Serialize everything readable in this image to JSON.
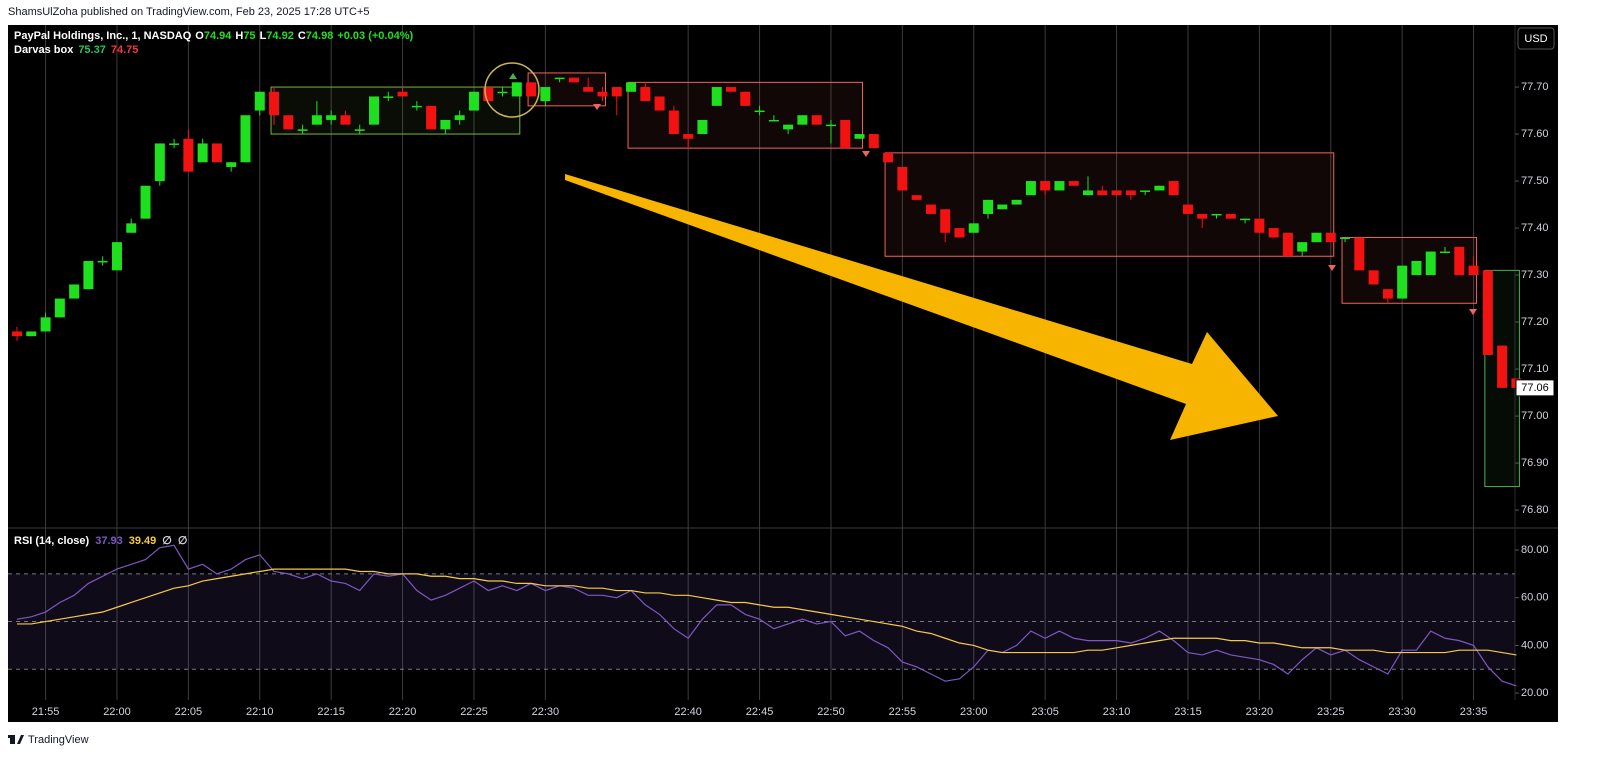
{
  "page": {
    "header": "ShamsUlZoha published on TradingView.com, Feb 23, 2025 17:28 UTC+5",
    "footer": "TradingView"
  },
  "chart_data": [
    {
      "type": "candlestick",
      "title": "PayPal Holdings, Inc., 1, NASDAQ",
      "ohlc": [
        {
          "label": "O",
          "value": 74.94
        },
        {
          "label": "H",
          "value": 75.0
        },
        {
          "label": "L",
          "value": 74.92
        },
        {
          "label": "C",
          "value": 74.98
        }
      ],
      "change": "+0.03 (+0.04%)",
      "indicator": {
        "name": "Darvas box",
        "values": [
          75.37,
          74.75
        ],
        "colors": [
          "#22c55e",
          "#f23645"
        ]
      },
      "currency": "USD",
      "last_price": {
        "value": 77.06,
        "label": "77.06"
      },
      "up_color": "#1fe01f",
      "down_color": "#f21212",
      "ylim": [
        76.764,
        77.832
      ],
      "yticks": [
        {
          "value": 77.7,
          "label": "77.70"
        },
        {
          "value": 77.6,
          "label": "77.60"
        },
        {
          "value": 77.5,
          "label": "77.50"
        },
        {
          "value": 77.4,
          "label": "77.40"
        },
        {
          "value": 77.3,
          "label": "77.30"
        },
        {
          "value": 77.2,
          "label": "77.20"
        },
        {
          "value": 77.1,
          "label": "77.10"
        },
        {
          "value": 77.0,
          "label": "77.00"
        },
        {
          "value": 76.9,
          "label": "76.90"
        },
        {
          "value": 76.8,
          "label": "76.80"
        }
      ],
      "xticks": [
        "21:55",
        "22:00",
        "22:05",
        "22:10",
        "22:15",
        "22:20",
        "22:25",
        "22:30",
        "22:40",
        "22:45",
        "22:50",
        "22:55",
        "23:00",
        "23:05",
        "23:10",
        "23:15",
        "23:20",
        "23:25",
        "23:30",
        "23:35"
      ],
      "x": [
        "21:53",
        "21:54",
        "21:55",
        "21:56",
        "21:57",
        "21:58",
        "21:59",
        "22:00",
        "22:01",
        "22:02",
        "22:03",
        "22:04",
        "22:05",
        "22:06",
        "22:07",
        "22:08",
        "22:09",
        "22:10",
        "22:11",
        "22:12",
        "22:13",
        "22:14",
        "22:15",
        "22:16",
        "22:17",
        "22:18",
        "22:19",
        "22:20",
        "22:21",
        "22:22",
        "22:23",
        "22:24",
        "22:25",
        "22:26",
        "22:27",
        "22:28",
        "22:29",
        "22:30",
        "22:31",
        "22:32",
        "22:33",
        "22:34",
        "22:35",
        "22:36",
        "22:37",
        "22:38",
        "22:39",
        "22:40",
        "22:41",
        "22:42",
        "22:43",
        "22:44",
        "22:45",
        "22:46",
        "22:47",
        "22:48",
        "22:49",
        "22:50",
        "22:51",
        "22:52",
        "22:53",
        "22:54",
        "22:55",
        "22:56",
        "22:57",
        "22:58",
        "22:59",
        "23:00",
        "23:01",
        "23:02",
        "23:03",
        "23:04",
        "23:05",
        "23:06",
        "23:07",
        "23:08",
        "23:09",
        "23:10",
        "23:11",
        "23:12",
        "23:13",
        "23:14",
        "23:15",
        "23:16",
        "23:17",
        "23:18",
        "23:19",
        "23:20",
        "23:21",
        "23:22",
        "23:23",
        "23:24",
        "23:25",
        "23:26",
        "23:27",
        "23:28",
        "23:29",
        "23:30",
        "23:31",
        "23:32",
        "23:33",
        "23:34",
        "23:35",
        "23:36",
        "23:37",
        "23:38"
      ],
      "candles": [
        [
          77.18,
          77.19,
          77.16,
          77.17
        ],
        [
          77.17,
          77.18,
          77.17,
          77.18
        ],
        [
          77.18,
          77.22,
          77.18,
          77.21
        ],
        [
          77.21,
          77.25,
          77.21,
          77.25
        ],
        [
          77.25,
          77.28,
          77.25,
          77.28
        ],
        [
          77.27,
          77.33,
          77.27,
          77.33
        ],
        [
          77.33,
          77.34,
          77.32,
          77.33
        ],
        [
          77.31,
          77.37,
          77.31,
          77.37
        ],
        [
          77.39,
          77.42,
          77.39,
          77.41
        ],
        [
          77.42,
          77.49,
          77.42,
          77.49
        ],
        [
          77.5,
          77.58,
          77.49,
          77.58
        ],
        [
          77.58,
          77.59,
          77.57,
          77.58
        ],
        [
          77.59,
          77.61,
          77.52,
          77.52
        ],
        [
          77.54,
          77.59,
          77.54,
          77.58
        ],
        [
          77.58,
          77.58,
          77.54,
          77.54
        ],
        [
          77.53,
          77.54,
          77.52,
          77.54
        ],
        [
          77.54,
          77.64,
          77.54,
          77.64
        ],
        [
          77.65,
          77.69,
          77.64,
          77.69
        ],
        [
          77.69,
          77.7,
          77.62,
          77.64
        ],
        [
          77.64,
          77.64,
          77.61,
          77.61
        ],
        [
          77.61,
          77.62,
          77.6,
          77.61
        ],
        [
          77.62,
          77.67,
          77.62,
          77.64
        ],
        [
          77.63,
          77.65,
          77.62,
          77.64
        ],
        [
          77.64,
          77.65,
          77.62,
          77.62
        ],
        [
          77.61,
          77.62,
          77.6,
          77.61
        ],
        [
          77.62,
          77.68,
          77.62,
          77.68
        ],
        [
          77.68,
          77.69,
          77.67,
          77.68
        ],
        [
          77.69,
          77.7,
          77.68,
          77.68
        ],
        [
          77.66,
          77.67,
          77.65,
          77.66
        ],
        [
          77.66,
          77.66,
          77.61,
          77.61
        ],
        [
          77.61,
          77.63,
          77.6,
          77.63
        ],
        [
          77.63,
          77.65,
          77.62,
          77.64
        ],
        [
          77.65,
          77.69,
          77.65,
          77.69
        ],
        [
          77.7,
          77.7,
          77.67,
          77.67
        ],
        [
          77.69,
          77.7,
          77.68,
          77.69
        ],
        [
          77.68,
          77.71,
          77.68,
          77.71
        ],
        [
          77.71,
          77.71,
          77.68,
          77.68
        ],
        [
          77.67,
          77.7,
          77.66,
          77.7
        ],
        [
          77.72,
          77.72,
          77.71,
          77.72
        ],
        [
          77.72,
          77.72,
          77.71,
          77.71
        ],
        [
          77.7,
          77.72,
          77.69,
          77.69
        ],
        [
          77.69,
          77.7,
          77.67,
          77.68
        ],
        [
          77.7,
          77.7,
          77.64,
          77.68
        ],
        [
          77.69,
          77.71,
          77.69,
          77.71
        ],
        [
          77.7,
          77.71,
          77.67,
          77.67
        ],
        [
          77.68,
          77.68,
          77.65,
          77.65
        ],
        [
          77.65,
          77.66,
          77.6,
          77.6
        ],
        [
          77.6,
          77.6,
          77.57,
          77.59
        ],
        [
          77.6,
          77.63,
          77.6,
          77.63
        ],
        [
          77.66,
          77.7,
          77.66,
          77.7
        ],
        [
          77.7,
          77.7,
          77.69,
          77.69
        ],
        [
          77.69,
          77.69,
          77.66,
          77.66
        ],
        [
          77.65,
          77.66,
          77.64,
          77.65
        ],
        [
          77.63,
          77.64,
          77.63,
          77.63
        ],
        [
          77.61,
          77.62,
          77.6,
          77.62
        ],
        [
          77.62,
          77.64,
          77.62,
          77.64
        ],
        [
          77.64,
          77.64,
          77.62,
          77.62
        ],
        [
          77.62,
          77.63,
          77.58,
          77.62
        ],
        [
          77.63,
          77.63,
          77.57,
          77.57
        ],
        [
          77.59,
          77.6,
          77.59,
          77.6
        ],
        [
          77.6,
          77.6,
          77.57,
          77.57
        ],
        [
          77.56,
          77.56,
          77.54,
          77.54
        ],
        [
          77.53,
          77.53,
          77.48,
          77.48
        ],
        [
          77.47,
          77.47,
          77.46,
          77.46
        ],
        [
          77.45,
          77.45,
          77.43,
          77.43
        ],
        [
          77.44,
          77.44,
          77.37,
          77.39
        ],
        [
          77.4,
          77.4,
          77.38,
          77.38
        ],
        [
          77.39,
          77.41,
          77.39,
          77.41
        ],
        [
          77.43,
          77.46,
          77.42,
          77.46
        ],
        [
          77.44,
          77.45,
          77.44,
          77.45
        ],
        [
          77.45,
          77.46,
          77.45,
          77.46
        ],
        [
          77.47,
          77.5,
          77.47,
          77.5
        ],
        [
          77.5,
          77.5,
          77.47,
          77.48
        ],
        [
          77.48,
          77.5,
          77.48,
          77.5
        ],
        [
          77.5,
          77.5,
          77.49,
          77.49
        ],
        [
          77.47,
          77.51,
          77.47,
          77.48
        ],
        [
          77.48,
          77.49,
          77.47,
          77.47
        ],
        [
          77.48,
          77.48,
          77.47,
          77.47
        ],
        [
          77.48,
          77.48,
          77.46,
          77.47
        ],
        [
          77.48,
          77.48,
          77.47,
          77.48
        ],
        [
          77.48,
          77.49,
          77.48,
          77.49
        ],
        [
          77.5,
          77.5,
          77.47,
          77.47
        ],
        [
          77.45,
          77.45,
          77.43,
          77.43
        ],
        [
          77.43,
          77.43,
          77.4,
          77.42
        ],
        [
          77.43,
          77.43,
          77.42,
          77.43
        ],
        [
          77.43,
          77.43,
          77.42,
          77.42
        ],
        [
          77.42,
          77.42,
          77.41,
          77.42
        ],
        [
          77.42,
          77.42,
          77.39,
          77.39
        ],
        [
          77.4,
          77.4,
          77.38,
          77.38
        ],
        [
          77.39,
          77.39,
          77.34,
          77.34
        ],
        [
          77.35,
          77.37,
          77.34,
          77.37
        ],
        [
          77.37,
          77.39,
          77.37,
          77.39
        ],
        [
          77.39,
          77.39,
          77.37,
          77.37
        ],
        [
          77.38,
          77.38,
          77.37,
          77.38
        ],
        [
          77.38,
          77.38,
          77.31,
          77.31
        ],
        [
          77.31,
          77.31,
          77.28,
          77.28
        ],
        [
          77.27,
          77.27,
          77.24,
          77.25
        ],
        [
          77.25,
          77.32,
          77.25,
          77.32
        ],
        [
          77.3,
          77.33,
          77.3,
          77.33
        ],
        [
          77.3,
          77.35,
          77.3,
          77.35
        ],
        [
          77.35,
          77.36,
          77.35,
          77.35
        ],
        [
          77.36,
          77.36,
          77.3,
          77.3
        ],
        [
          77.32,
          77.34,
          77.3,
          77.3
        ],
        [
          77.31,
          77.31,
          77.13,
          77.13
        ],
        [
          77.15,
          77.15,
          77.06,
          77.06
        ],
        [
          77.08,
          77.08,
          77.06,
          77.06
        ]
      ],
      "boxes": [
        {
          "start": "22:11",
          "end": "22:28",
          "top": 77.7,
          "bottom": 77.6,
          "color": "#7cb342"
        },
        {
          "start": "22:29",
          "end": "22:34",
          "top": 77.73,
          "bottom": 77.66,
          "color": "#f0645a"
        },
        {
          "start": "22:36",
          "end": "22:52",
          "top": 77.71,
          "bottom": 77.57,
          "color": "#f0645a"
        },
        {
          "start": "22:54",
          "end": "23:25",
          "top": 77.56,
          "bottom": 77.34,
          "color": "#f0645a"
        },
        {
          "start": "23:26",
          "end": "23:35",
          "top": 77.38,
          "bottom": 77.24,
          "color": "#f0645a"
        },
        {
          "start": "23:36",
          "end": "23:38",
          "top": 77.31,
          "bottom": 76.85,
          "color": "#4caf50"
        }
      ]
    },
    {
      "type": "line",
      "title": "RSI (14, close)",
      "legend_values": [
        "37.93",
        "39.49",
        "∅",
        "∅"
      ],
      "legend_colors": [
        "#7e57c2",
        "#f7c948",
        "#d1d4dc",
        "#d1d4dc"
      ],
      "ylim": [
        17.1,
        88.4
      ],
      "yticks": [
        {
          "value": 80,
          "label": "80.00"
        },
        {
          "value": 60,
          "label": "60.00"
        },
        {
          "value": 40,
          "label": "40.00"
        },
        {
          "value": 20,
          "label": "20.00"
        }
      ],
      "bands": [
        70,
        50,
        30
      ],
      "series": [
        {
          "color": "#7e57c2",
          "values": [
            51,
            52,
            54,
            58,
            61,
            66,
            69,
            72,
            74,
            76,
            81,
            82,
            72,
            74,
            70,
            72,
            76,
            78,
            71,
            70,
            68,
            70,
            67,
            66,
            63,
            70,
            69,
            70,
            63,
            59,
            61,
            64,
            67,
            63,
            65,
            63,
            66,
            63,
            65,
            64,
            61,
            61,
            60,
            63,
            57,
            53,
            47,
            43,
            51,
            57,
            57,
            53,
            51,
            47,
            49,
            51,
            49,
            50,
            44,
            46,
            42,
            39,
            33,
            31,
            28,
            25,
            26,
            31,
            38,
            37,
            40,
            46,
            43,
            46,
            43,
            42,
            42,
            42,
            41,
            43,
            46,
            42,
            37,
            36,
            38,
            36,
            35,
            34,
            32,
            28,
            34,
            39,
            36,
            38,
            34,
            31,
            28,
            38,
            38,
            46,
            43,
            42,
            40,
            31,
            25,
            23
          ]
        },
        {
          "color": "#f7c948",
          "values": [
            49,
            49,
            50,
            51,
            52,
            53,
            54,
            56,
            58,
            60,
            62,
            64,
            65,
            67,
            68,
            69,
            70,
            71,
            72,
            72,
            72,
            72,
            72,
            72,
            71,
            71,
            70,
            70,
            70,
            69,
            69,
            68,
            68,
            67,
            67,
            66,
            66,
            65,
            65,
            65,
            64,
            64,
            63,
            63,
            62,
            62,
            61,
            61,
            60,
            59,
            58,
            58,
            57,
            56,
            56,
            55,
            54,
            53,
            52,
            51,
            50,
            49,
            48,
            46,
            45,
            43,
            41,
            40,
            38,
            37,
            37,
            37,
            37,
            37,
            37,
            38,
            38,
            39,
            40,
            41,
            42,
            43,
            43,
            43,
            43,
            42,
            42,
            41,
            41,
            40,
            39,
            39,
            39,
            38,
            38,
            38,
            37,
            37,
            37,
            37,
            37,
            38,
            38,
            38,
            37,
            36
          ]
        }
      ]
    }
  ]
}
